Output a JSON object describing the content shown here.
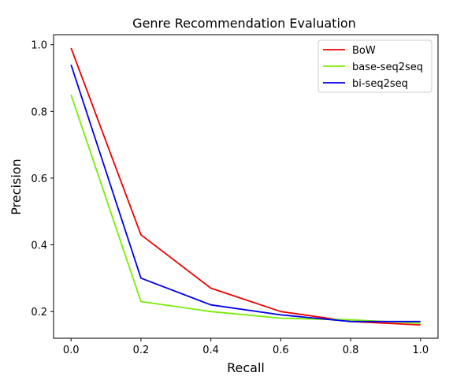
{
  "chart_data": {
    "type": "line",
    "title": "Genre Recommendation Evaluation",
    "xlabel": "Recall",
    "ylabel": "Precision",
    "x": [
      0.0,
      0.2,
      0.4,
      0.6,
      0.8,
      1.0
    ],
    "xlim": [
      -0.05,
      1.05
    ],
    "ylim": [
      0.12,
      1.03
    ],
    "xticks": [
      0.0,
      0.2,
      0.4,
      0.6,
      0.8,
      1.0
    ],
    "xtick_labels": [
      "0.0",
      "0.2",
      "0.4",
      "0.6",
      "0.8",
      "1.0"
    ],
    "yticks": [
      0.2,
      0.4,
      0.6,
      0.8,
      1.0
    ],
    "ytick_labels": [
      "0.2",
      "0.4",
      "0.6",
      "0.8",
      "1.0"
    ],
    "grid": false,
    "legend_position": "top-right",
    "series": [
      {
        "name": "BoW",
        "color": "#ee0000",
        "values": [
          0.99,
          0.43,
          0.27,
          0.2,
          0.17,
          0.16
        ]
      },
      {
        "name": "base-seq2seq",
        "color": "#77ee00",
        "values": [
          0.85,
          0.23,
          0.2,
          0.18,
          0.175,
          0.165
        ]
      },
      {
        "name": "bi-seq2seq",
        "color": "#0000ee",
        "values": [
          0.94,
          0.3,
          0.22,
          0.19,
          0.17,
          0.17
        ]
      }
    ]
  }
}
